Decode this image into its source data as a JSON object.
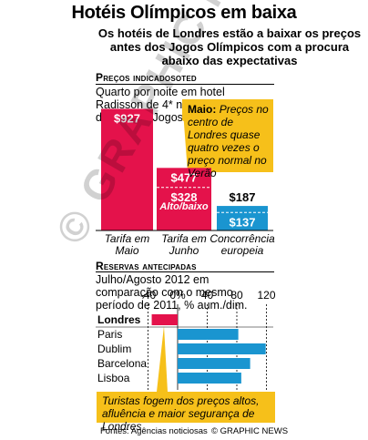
{
  "title": "Hotéis Olímpicos em baixa",
  "subtitle": "Os hotéis de Londres estão a baixar os preços antes dos Jogos Olímpicos com a procura abaixo das expectativas",
  "section1": {
    "heading": "Preços indicadosoted",
    "description": "Quarto por noite em hotel Radisson de 4* nas Docklands durante os Jogos",
    "callout_bold": "Maio:",
    "callout_text": "Preços no centro de Londres quase quatro vezes o preço normal no Verão"
  },
  "section2": {
    "heading": "Reservas antecipadas",
    "description": "Julho/Agosto 2012 em comparação com o mesmo período de 2011, % aum./dim.",
    "callout_text": "Turistas fogem dos preços altos, afluência e maior segurança de Londres"
  },
  "footer": {
    "sources": "Fontes: Agências noticiosas",
    "credit": "© GRAPHIC NEWS"
  },
  "watermark": "© GRAPHIC NEWS",
  "colors": {
    "red": "#e4124b",
    "blue": "#1a95d0",
    "yellow": "#f6c01a"
  },
  "chart_data": [
    {
      "type": "bar",
      "categories": [
        "Tarifa em Maio",
        "Tarifa em Junho",
        "Concorrência europeia"
      ],
      "values": [
        927,
        477,
        187
      ],
      "labels": [
        "$927",
        "$477",
        "$187"
      ],
      "secondary_values": [
        null,
        328,
        137
      ],
      "secondary_labels": [
        "",
        "$328",
        "$137"
      ],
      "annotation": "Alto/baixo",
      "ylim": [
        0,
        1000
      ]
    },
    {
      "type": "bar",
      "orientation": "horizontal",
      "categories": [
        "Londres",
        "Paris",
        "Dublim",
        "Barcelona",
        "Lisboa"
      ],
      "values": [
        -35,
        82,
        119,
        98,
        86
      ],
      "xticks": [
        "-40",
        "0%",
        "40",
        "80",
        "120"
      ],
      "xlim": [
        -40,
        120
      ]
    }
  ]
}
